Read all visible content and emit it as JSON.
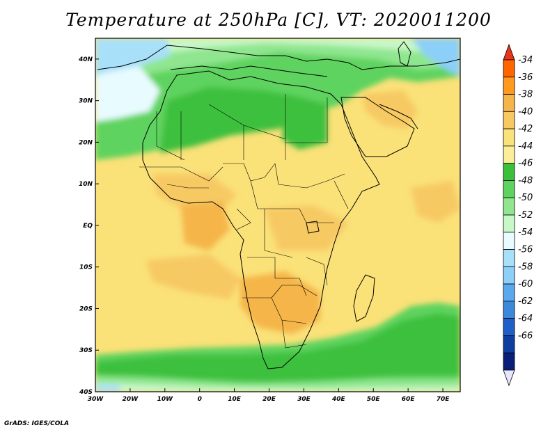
{
  "title": "Temperature at 250hPa [C], VT: 2020011200",
  "footer": "GrADS: IGES/COLA",
  "map": {
    "lon_range": [
      -30,
      75
    ],
    "lat_range": [
      -40,
      45
    ],
    "lon_ticks": [
      "30W",
      "20W",
      "10W",
      "0",
      "10E",
      "20E",
      "30E",
      "40E",
      "50E",
      "60E",
      "70E"
    ],
    "lat_ticks": [
      "40S",
      "30S",
      "20S",
      "10S",
      "EQ",
      "10N",
      "20N",
      "30N",
      "40N"
    ],
    "background_color": "#fae178"
  },
  "colorbar": {
    "labels": [
      "-34",
      "-36",
      "-38",
      "-40",
      "-42",
      "-44",
      "-46",
      "-48",
      "-50",
      "-52",
      "-54",
      "-56",
      "-58",
      "-60",
      "-62",
      "-64",
      "-66"
    ],
    "colors": [
      "#ff6600",
      "#ff9a1f",
      "#f5b54a",
      "#f7c963",
      "#fae178",
      "#fbee9a",
      "#3cc03c",
      "#5fd35f",
      "#8fe68f",
      "#c8f7c8",
      "#e8fbff",
      "#a9e0f9",
      "#8ccff8",
      "#5aa9ee",
      "#3c89dc",
      "#1f5fc8",
      "#0f3e9e",
      "#0a1e78"
    ]
  }
}
